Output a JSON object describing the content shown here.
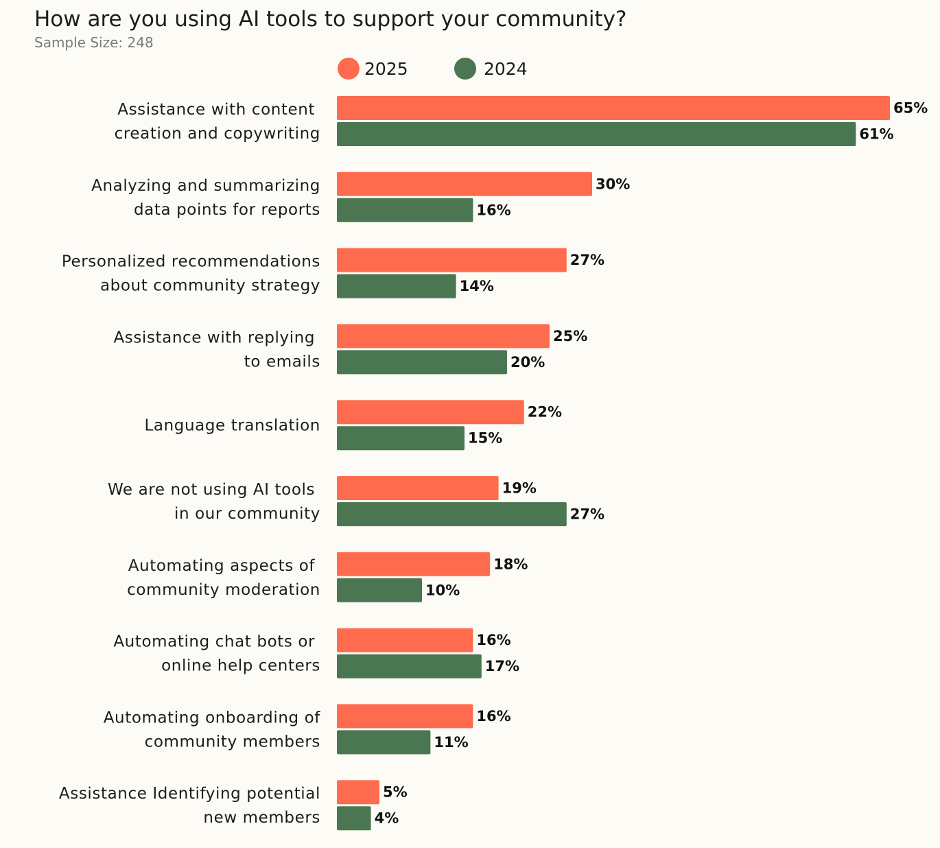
{
  "chart_data": {
    "type": "bar",
    "orientation": "horizontal",
    "title": "How are you using AI tools to support your community?",
    "subtitle": "Sample Size: 248",
    "xlim": [
      0,
      65
    ],
    "value_suffix": "%",
    "legend_position": "top",
    "categories": [
      [
        "Assistance with content ",
        "creation and copywriting"
      ],
      [
        "Analyzing and summarizing",
        "data points for reports"
      ],
      [
        "Personalized recommendations",
        "about community strategy"
      ],
      [
        "Assistance with replying ",
        "to emails"
      ],
      [
        "Language translation"
      ],
      [
        "We are not using AI tools ",
        "in our community"
      ],
      [
        "Automating aspects of ",
        "community moderation"
      ],
      [
        "Automating chat bots or ",
        "online help centers"
      ],
      [
        "Automating onboarding of",
        "community members"
      ],
      [
        "Assistance Identifying potential",
        "new members"
      ]
    ],
    "series": [
      {
        "name": "2025",
        "color": "#ff6b4e",
        "values": [
          65,
          30,
          27,
          25,
          22,
          19,
          18,
          16,
          16,
          5
        ]
      },
      {
        "name": "2024",
        "color": "#4a7752",
        "values": [
          61,
          16,
          14,
          20,
          15,
          27,
          10,
          17,
          11,
          4
        ]
      }
    ]
  }
}
